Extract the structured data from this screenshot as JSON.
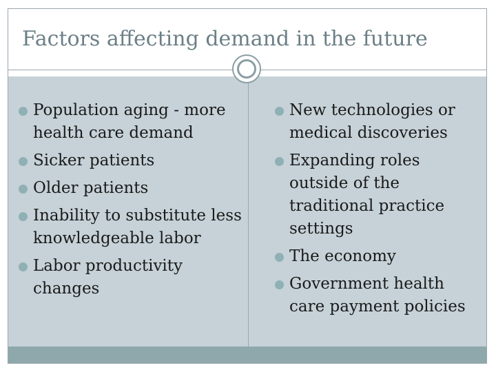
{
  "slide": {
    "title": "Factors affecting demand in the future",
    "left_column": [
      "Population aging - more health care demand",
      "Sicker patients",
      "Older patients",
      "Inability to substitute less knowledgeable labor",
      "Labor productivity changes"
    ],
    "right_column": [
      "New technologies or medical discoveries",
      "Expanding roles outside of the traditional practice settings",
      "The economy",
      "Government health care payment policies"
    ]
  },
  "colors": {
    "title": "#6b7f86",
    "body_background": "#c6d2d8",
    "bullet": "#8fb0b4",
    "footer_bar": "#8ea8ab"
  }
}
